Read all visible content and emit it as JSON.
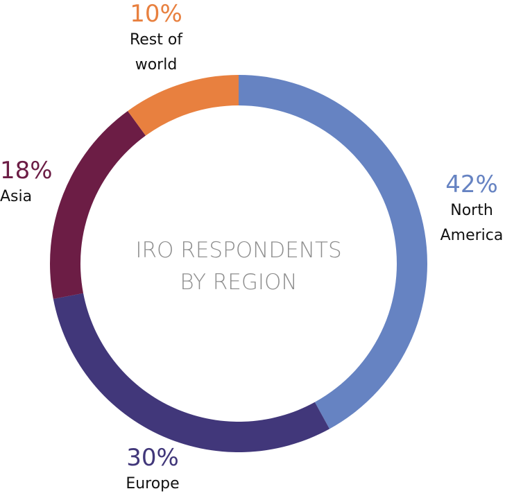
{
  "chart_data": {
    "type": "donut",
    "title": "IRO RESPONDENTS BY REGION",
    "categories": [
      "North America",
      "Europe",
      "Asia",
      "Rest of world"
    ],
    "values": [
      42,
      30,
      18,
      10
    ],
    "value_labels": [
      "42%",
      "30%",
      "18%",
      "10%"
    ],
    "colors": [
      "#6683c2",
      "#41377a",
      "#6c1d45",
      "#e8803f"
    ]
  }
}
